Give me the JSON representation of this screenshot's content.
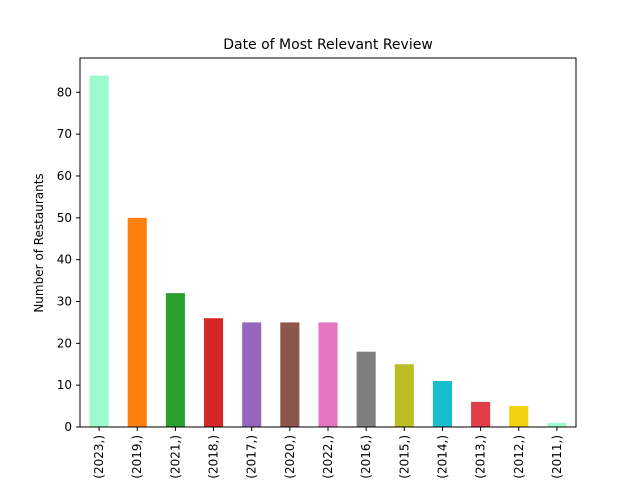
{
  "chart_data": {
    "type": "bar",
    "title": "Date of Most Relevant Review",
    "xlabel": "",
    "ylabel": "Number of Restaurants",
    "categories": [
      "(2023,)",
      "(2019,)",
      "(2021,)",
      "(2018,)",
      "(2017,)",
      "(2020,)",
      "(2022,)",
      "(2016,)",
      "(2015,)",
      "(2014,)",
      "(2013,)",
      "(2012,)",
      "(2011,)"
    ],
    "values": [
      84,
      50,
      32,
      26,
      25,
      25,
      25,
      18,
      15,
      11,
      6,
      5,
      1
    ],
    "colors": [
      "#9bfbcc",
      "#ff7f0e",
      "#2ca02c",
      "#d62728",
      "#9467bd",
      "#8c564b",
      "#e377c2",
      "#7f7f7f",
      "#bcbd22",
      "#17becf",
      "#e23d48",
      "#f2d20f",
      "#9bfbcc"
    ],
    "ylim": [
      0,
      88.2
    ],
    "yticks": [
      0,
      10,
      20,
      30,
      40,
      50,
      60,
      70,
      80
    ],
    "grid": false,
    "legend": "none"
  }
}
